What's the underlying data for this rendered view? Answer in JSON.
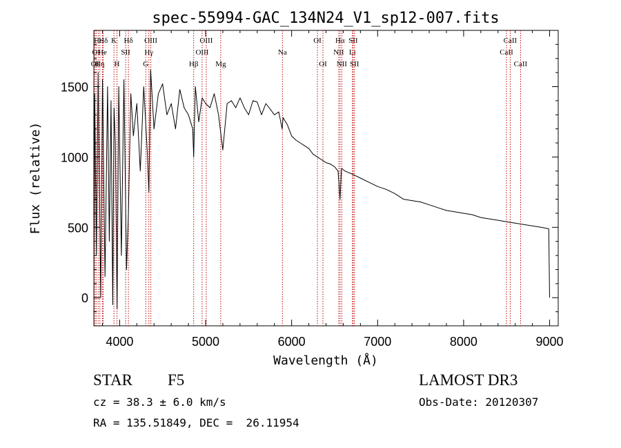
{
  "chart_data": {
    "type": "line",
    "title": "spec-55994-GAC_134N24_V1_sp12-007.fits",
    "xlabel": "Wavelength (Å)",
    "ylabel": "Flux (relative)",
    "xlim": [
      3700,
      9100
    ],
    "ylim": [
      -200,
      1900
    ],
    "xticks": [
      4000,
      5000,
      6000,
      7000,
      8000,
      9000
    ],
    "yticks": [
      0,
      500,
      1000,
      1500
    ],
    "grid": false,
    "series": [
      {
        "name": "spectrum",
        "color": "#000000",
        "x": [
          3700,
          3710,
          3730,
          3750,
          3780,
          3800,
          3830,
          3860,
          3880,
          3900,
          3920,
          3935,
          3950,
          3970,
          3990,
          4020,
          4050,
          4080,
          4102,
          4130,
          4160,
          4200,
          4240,
          4280,
          4320,
          4340,
          4360,
          4400,
          4450,
          4500,
          4550,
          4600,
          4650,
          4700,
          4750,
          4800,
          4850,
          4861,
          4880,
          4920,
          4960,
          5000,
          5050,
          5100,
          5150,
          5200,
          5250,
          5300,
          5350,
          5400,
          5450,
          5500,
          5550,
          5600,
          5650,
          5700,
          5750,
          5800,
          5850,
          5890,
          5900,
          5950,
          6000,
          6050,
          6100,
          6150,
          6200,
          6250,
          6300,
          6350,
          6400,
          6450,
          6500,
          6540,
          6563,
          6580,
          6620,
          6700,
          6800,
          6900,
          7000,
          7100,
          7200,
          7300,
          7400,
          7500,
          7600,
          7700,
          7800,
          7900,
          8000,
          8100,
          8200,
          8300,
          8400,
          8500,
          8600,
          8700,
          8800,
          8900,
          8990,
          9000
        ],
        "values": [
          100,
          1450,
          300,
          1600,
          0,
          1550,
          150,
          1500,
          400,
          1400,
          -50,
          1350,
          1100,
          -80,
          1500,
          300,
          1550,
          200,
          600,
          1450,
          1150,
          1380,
          900,
          1500,
          1050,
          750,
          1620,
          1200,
          1450,
          1520,
          1300,
          1380,
          1200,
          1480,
          1350,
          1300,
          1200,
          1000,
          1500,
          1250,
          1420,
          1380,
          1350,
          1450,
          1300,
          1050,
          1380,
          1400,
          1350,
          1420,
          1350,
          1300,
          1400,
          1390,
          1300,
          1380,
          1340,
          1300,
          1320,
          1200,
          1280,
          1230,
          1150,
          1120,
          1100,
          1080,
          1060,
          1020,
          1000,
          980,
          960,
          950,
          930,
          900,
          700,
          920,
          900,
          880,
          850,
          820,
          790,
          770,
          740,
          700,
          690,
          680,
          660,
          640,
          620,
          610,
          600,
          590,
          570,
          560,
          550,
          540,
          530,
          520,
          510,
          500,
          490,
          0
        ]
      }
    ],
    "line_markers": [
      {
        "label": "OI",
        "x": 3712,
        "row": 3
      },
      {
        "label": "OI",
        "x": 3727,
        "row": 2
      },
      {
        "label": "Hε",
        "x": 3750,
        "row": 1
      },
      {
        "label": "Hη",
        "x": 3770,
        "row": 3
      },
      {
        "label": "He",
        "x": 3800,
        "row": 2
      },
      {
        "label": "Hδ",
        "x": 3810,
        "row": 1
      },
      {
        "label": "K",
        "x": 3934,
        "row": 1
      },
      {
        "label": "H",
        "x": 3969,
        "row": 3
      },
      {
        "label": "SII",
        "x": 4070,
        "row": 2
      },
      {
        "label": "Hδ",
        "x": 4102,
        "row": 1
      },
      {
        "label": "G",
        "x": 4304,
        "row": 3
      },
      {
        "label": "Hγ",
        "x": 4340,
        "row": 2
      },
      {
        "label": "OIII",
        "x": 4363,
        "row": 1
      },
      {
        "label": "Hβ",
        "x": 4861,
        "row": 3
      },
      {
        "label": "OIII",
        "x": 4959,
        "row": 2
      },
      {
        "label": "OIII",
        "x": 5007,
        "row": 1
      },
      {
        "label": "Mg",
        "x": 5175,
        "row": 3
      },
      {
        "label": "Na",
        "x": 5893,
        "row": 2
      },
      {
        "label": "OI",
        "x": 6300,
        "row": 1
      },
      {
        "label": "OI",
        "x": 6364,
        "row": 3
      },
      {
        "label": "NII",
        "x": 6548,
        "row": 2
      },
      {
        "label": "Hα",
        "x": 6563,
        "row": 1
      },
      {
        "label": "NII",
        "x": 6583,
        "row": 3
      },
      {
        "label": "Li",
        "x": 6707,
        "row": 2
      },
      {
        "label": "SII",
        "x": 6716,
        "row": 1
      },
      {
        "label": "SII",
        "x": 6731,
        "row": 3
      },
      {
        "label": "CaII",
        "x": 8498,
        "row": 2
      },
      {
        "label": "CaII",
        "x": 8542,
        "row": 1
      },
      {
        "label": "CaII",
        "x": 8662,
        "row": 3
      }
    ],
    "marker_color": "#c00000"
  },
  "info": {
    "object_class": "STAR",
    "subclass": "F5",
    "survey": "LAMOST DR3",
    "redshift": "cz = 38.3 ± 6.0 km/s",
    "obs_date": "Obs-Date: 20120307",
    "coords": "RA = 135.51849, DEC =  26.11954"
  }
}
